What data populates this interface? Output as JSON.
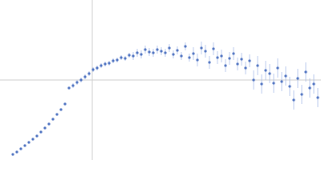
{
  "chart_data": {
    "type": "scatter",
    "x": [
      16,
      21,
      26,
      31,
      36,
      41,
      46,
      51,
      56,
      61,
      66,
      71,
      76,
      81,
      86,
      91,
      96,
      101,
      106,
      111,
      116,
      121,
      126,
      131,
      136,
      141,
      146,
      151,
      156,
      161,
      166,
      171,
      176,
      181,
      186,
      191,
      196,
      201,
      206,
      211,
      216,
      221,
      226,
      231,
      236,
      241,
      246,
      251,
      256,
      261,
      266,
      271,
      276,
      281,
      286,
      291,
      296,
      301,
      306,
      311,
      316,
      321,
      326,
      331,
      336,
      341,
      346,
      351,
      356,
      361,
      366,
      371,
      376,
      381,
      386,
      391,
      396
    ],
    "series": [
      {
        "color": "#4a6fbf",
        "error_color": "#a9bde8",
        "values": [
          7,
          10,
          14,
          18,
          22,
          26,
          30,
          35,
          40,
          45,
          51,
          57,
          63,
          70,
          90,
          93,
          97,
          100,
          104,
          108,
          113,
          115,
          118,
          120,
          121,
          124,
          125,
          128,
          127,
          131,
          130,
          134,
          132,
          138,
          135,
          134,
          138,
          136,
          134,
          140,
          132,
          137,
          130,
          142,
          128,
          133,
          125,
          140,
          136,
          122,
          139,
          128,
          130,
          118,
          127,
          133,
          120,
          126,
          115,
          124,
          100,
          118,
          95,
          112,
          108,
          96,
          115,
          98,
          105,
          92,
          75,
          102,
          82,
          110,
          90,
          95,
          78
        ],
        "errors": [
          1,
          1,
          1,
          1,
          1,
          1,
          1,
          1,
          1,
          1,
          1,
          1,
          1,
          1,
          1,
          3,
          3,
          3,
          3,
          3,
          3,
          3,
          3,
          3,
          3,
          3,
          3,
          3,
          3,
          3,
          5,
          5,
          5,
          5,
          5,
          5,
          5,
          5,
          5,
          5,
          5,
          5,
          5,
          5,
          5,
          8,
          8,
          8,
          8,
          8,
          8,
          8,
          8,
          8,
          8,
          8,
          8,
          8,
          8,
          8,
          12,
          12,
          12,
          12,
          12,
          12,
          12,
          12,
          12,
          12,
          12,
          12,
          12,
          12,
          12,
          12,
          12
        ]
      }
    ],
    "xlim": [
      0,
      400
    ],
    "ylim": [
      0,
      200
    ],
    "crosshair": {
      "x": 115,
      "y": 100,
      "color": "#cccccc"
    }
  }
}
